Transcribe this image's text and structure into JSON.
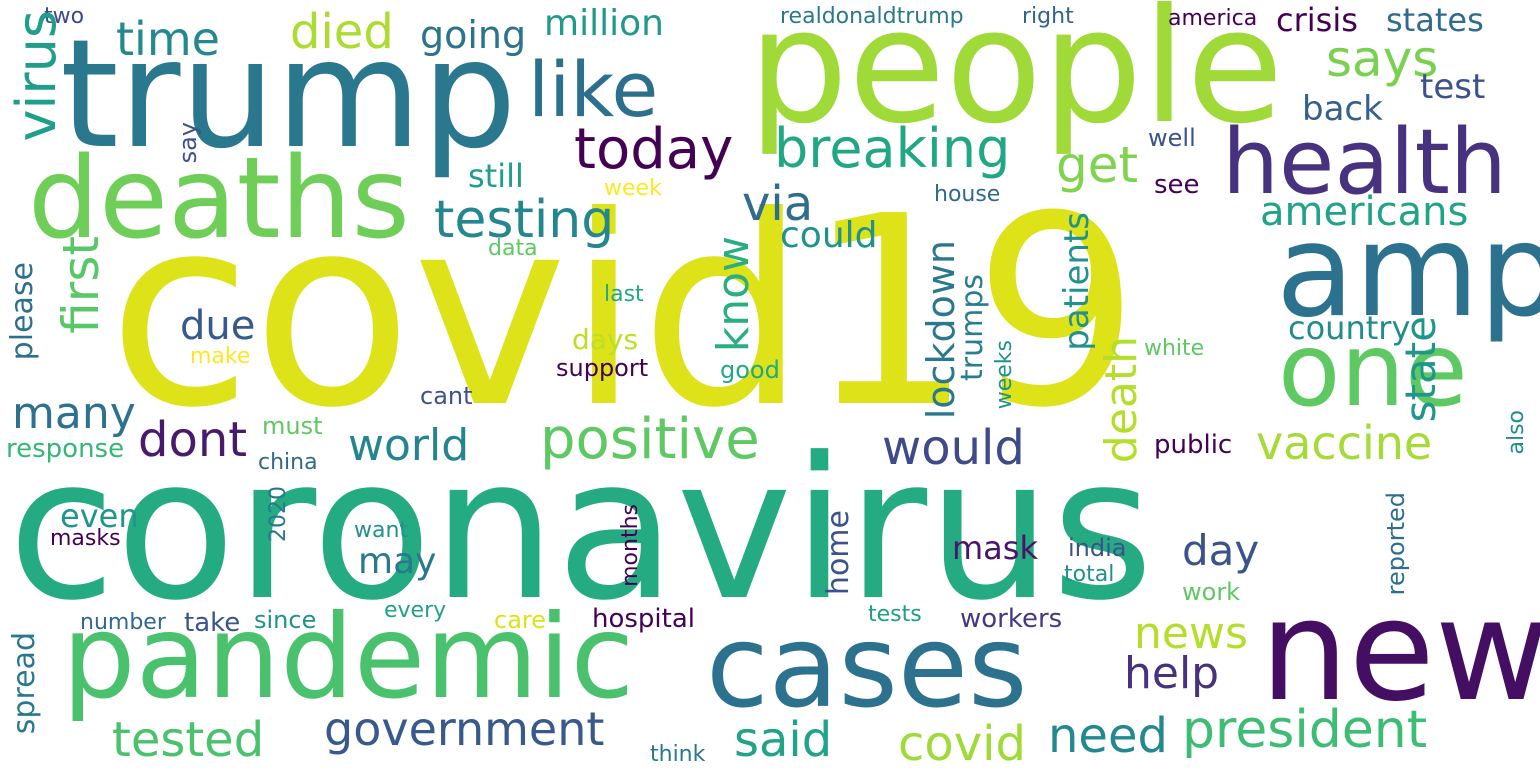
{
  "words": [
    {
      "text": "covid19",
      "color": "#dde318"
    },
    {
      "text": "coronavirus",
      "color": "#25ab82"
    },
    {
      "text": "trump",
      "color": "#2a788e"
    },
    {
      "text": "people",
      "color": "#a0da39"
    },
    {
      "text": "deaths",
      "color": "#6ece58"
    },
    {
      "text": "health",
      "color": "#46327e"
    },
    {
      "text": "amp",
      "color": "#2c728e"
    },
    {
      "text": "one",
      "color": "#5ec962"
    },
    {
      "text": "new",
      "color": "#440f62"
    },
    {
      "text": "cases",
      "color": "#2c718e"
    },
    {
      "text": "pandemic",
      "color": "#4ac16d"
    },
    {
      "text": "like",
      "color": "#2d708e"
    },
    {
      "text": "time",
      "color": "#23898e"
    },
    {
      "text": "died",
      "color": "#addc30"
    },
    {
      "text": "going",
      "color": "#2c738e"
    },
    {
      "text": "million",
      "color": "#1f9a8a"
    },
    {
      "text": "realdonaldtrump",
      "color": "#2a788e"
    },
    {
      "text": "right",
      "color": "#33638d"
    },
    {
      "text": "america",
      "color": "#440154"
    },
    {
      "text": "crisis",
      "color": "#440154"
    },
    {
      "text": "states",
      "color": "#306a8e"
    },
    {
      "text": "says",
      "color": "#7ad151"
    },
    {
      "text": "test",
      "color": "#3b528b"
    },
    {
      "text": "back",
      "color": "#355f8d"
    },
    {
      "text": "two",
      "color": "#3e4989"
    },
    {
      "text": "virus",
      "color": "#1f9e89"
    },
    {
      "text": "today",
      "color": "#440154"
    },
    {
      "text": "breaking",
      "color": "#22a785"
    },
    {
      "text": "get",
      "color": "#7fd34e"
    },
    {
      "text": "well",
      "color": "#3b528b"
    },
    {
      "text": "say",
      "color": "#3b528b"
    },
    {
      "text": "still",
      "color": "#1f9e89"
    },
    {
      "text": "week",
      "color": "#fde725"
    },
    {
      "text": "see",
      "color": "#440154"
    },
    {
      "text": "testing",
      "color": "#24868e"
    },
    {
      "text": "via",
      "color": "#2f6c8e"
    },
    {
      "text": "house",
      "color": "#31688e"
    },
    {
      "text": "americans",
      "color": "#20a386"
    },
    {
      "text": "could",
      "color": "#20928c"
    },
    {
      "text": "data",
      "color": "#5ec962"
    },
    {
      "text": "first",
      "color": "#58c765"
    },
    {
      "text": "know",
      "color": "#29af7f"
    },
    {
      "text": "lockdown",
      "color": "#2a788e"
    },
    {
      "text": "patients",
      "color": "#21918c"
    },
    {
      "text": "state",
      "color": "#1f968b"
    },
    {
      "text": "please",
      "color": "#2d708e"
    },
    {
      "text": "last",
      "color": "#22a884"
    },
    {
      "text": "due",
      "color": "#38598c"
    },
    {
      "text": "trumps",
      "color": "#287d8e"
    },
    {
      "text": "country",
      "color": "#228c8d"
    },
    {
      "text": "make",
      "color": "#fde725"
    },
    {
      "text": "days",
      "color": "#bddf26"
    },
    {
      "text": "support",
      "color": "#440154"
    },
    {
      "text": "weeks",
      "color": "#20928c"
    },
    {
      "text": "white",
      "color": "#5ec962"
    },
    {
      "text": "good",
      "color": "#22a884"
    },
    {
      "text": "many",
      "color": "#2c728e"
    },
    {
      "text": "cant",
      "color": "#3b528b"
    },
    {
      "text": "death",
      "color": "#b5de2b"
    },
    {
      "text": "positive",
      "color": "#5ec962"
    },
    {
      "text": "dont",
      "color": "#481a6c"
    },
    {
      "text": "world",
      "color": "#25858e"
    },
    {
      "text": "would",
      "color": "#3e4a89"
    },
    {
      "text": "vaccine",
      "color": "#a5db36"
    },
    {
      "text": "must",
      "color": "#5ec962"
    },
    {
      "text": "response",
      "color": "#35b779"
    },
    {
      "text": "china",
      "color": "#31688e"
    },
    {
      "text": "public",
      "color": "#440154"
    },
    {
      "text": "also",
      "color": "#228c8d"
    },
    {
      "text": "even",
      "color": "#1f968b"
    },
    {
      "text": "2020",
      "color": "#2a788e"
    },
    {
      "text": "masks",
      "color": "#440154"
    },
    {
      "text": "want",
      "color": "#21918c"
    },
    {
      "text": "home",
      "color": "#3b528b"
    },
    {
      "text": "mask",
      "color": "#481668"
    },
    {
      "text": "day",
      "color": "#3b528b"
    },
    {
      "text": "india",
      "color": "#3b528b"
    },
    {
      "text": "reported",
      "color": "#2e6e8e"
    },
    {
      "text": "may",
      "color": "#2a788e"
    },
    {
      "text": "months",
      "color": "#440154"
    },
    {
      "text": "total",
      "color": "#21918c"
    },
    {
      "text": "work",
      "color": "#5ec962"
    },
    {
      "text": "every",
      "color": "#20a386"
    },
    {
      "text": "number",
      "color": "#31688e"
    },
    {
      "text": "take",
      "color": "#3b528b"
    },
    {
      "text": "since",
      "color": "#21918c"
    },
    {
      "text": "care",
      "color": "#dde318"
    },
    {
      "text": "hospital",
      "color": "#440154"
    },
    {
      "text": "tests",
      "color": "#1f9e89"
    },
    {
      "text": "workers",
      "color": "#443983"
    },
    {
      "text": "spread",
      "color": "#2a788e"
    },
    {
      "text": "news",
      "color": "#b5de2b"
    },
    {
      "text": "help",
      "color": "#46327e"
    },
    {
      "text": "government",
      "color": "#38598c"
    },
    {
      "text": "tested",
      "color": "#4ac16d"
    },
    {
      "text": "said",
      "color": "#20a386"
    },
    {
      "text": "covid",
      "color": "#a0da39"
    },
    {
      "text": "need",
      "color": "#23898e"
    },
    {
      "text": "president",
      "color": "#3dbc74"
    },
    {
      "text": "think",
      "color": "#2a788e"
    }
  ]
}
